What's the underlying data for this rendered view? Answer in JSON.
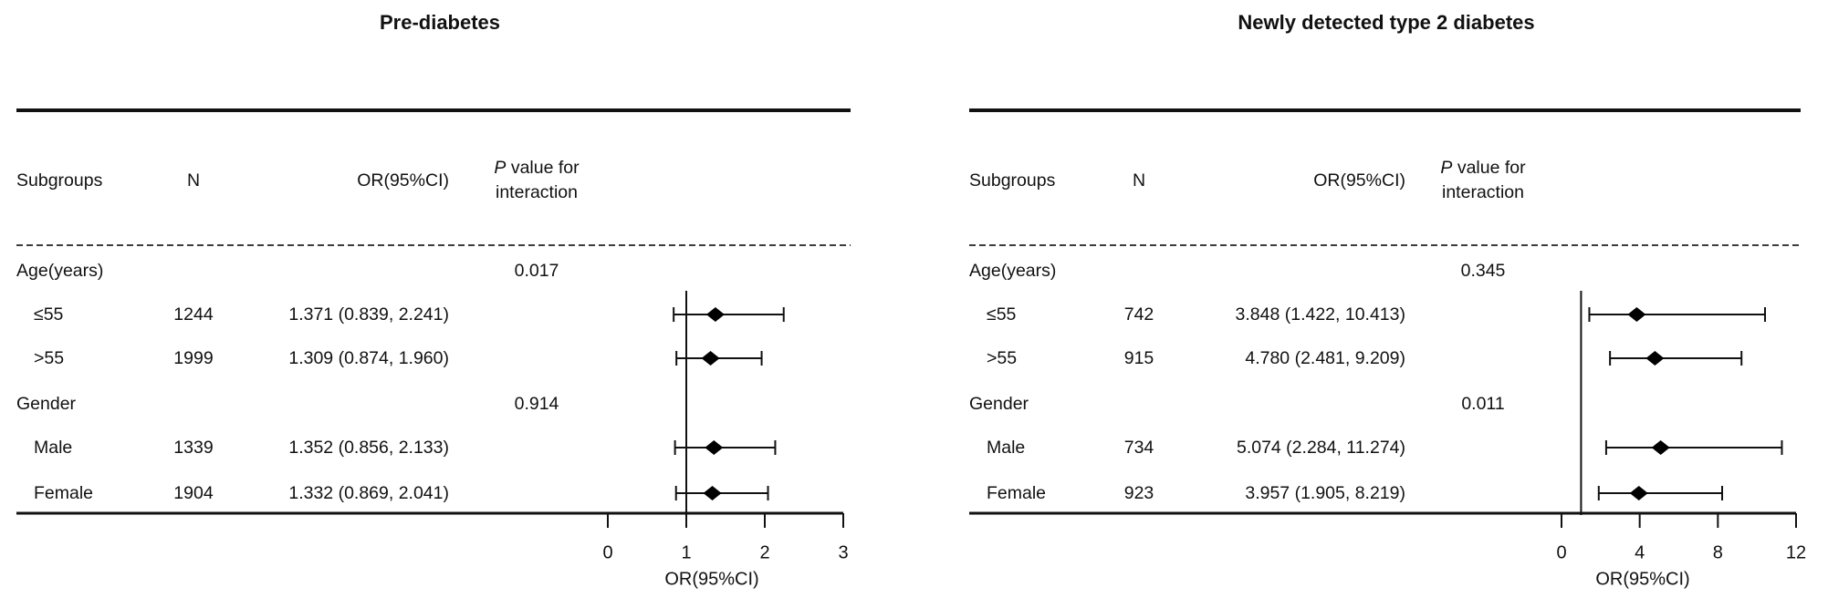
{
  "figure": {
    "name": "Subgroup forest plots of odds ratios",
    "background": "#ffffff",
    "text_color": "#111111",
    "marker_color": "#000000"
  },
  "chart_data": [
    {
      "type": "forest",
      "title": "Pre-diabetes",
      "columns": {
        "subgroups": "Subgroups",
        "n": "N",
        "or": "OR(95%CI)",
        "p_italic": "P",
        "p_rest": " value for",
        "p_line2": "interaction"
      },
      "rows": [
        {
          "type": "group",
          "label": "Age(years)",
          "p": "0.017"
        },
        {
          "type": "item",
          "label": "≤55",
          "n": "1244",
          "or_text": "1.371 (0.839, 2.241)",
          "or": 1.371,
          "lo": 0.839,
          "hi": 2.241
        },
        {
          "type": "item",
          "label": ">55",
          "n": "1999",
          "or_text": "1.309 (0.874, 1.960)",
          "or": 1.309,
          "lo": 0.874,
          "hi": 1.96
        },
        {
          "type": "group",
          "label": "Gender",
          "p": "0.914"
        },
        {
          "type": "item",
          "label": "Male",
          "n": "1339",
          "or_text": "1.352 (0.856, 2.133)",
          "or": 1.352,
          "lo": 0.856,
          "hi": 2.133
        },
        {
          "type": "item",
          "label": "Female",
          "n": "1904",
          "or_text": "1.332 (0.869, 2.041)",
          "or": 1.332,
          "lo": 0.869,
          "hi": 2.041
        }
      ],
      "xlabel": "OR(95%CI)",
      "xticks": [
        0,
        1,
        2,
        3
      ],
      "xlim": [
        0,
        3
      ],
      "ref_line": 1,
      "grid": false,
      "legend": "none"
    },
    {
      "type": "forest",
      "title": "Newly detected type 2 diabetes",
      "columns": {
        "subgroups": "Subgroups",
        "n": "N",
        "or": "OR(95%CI)",
        "p_italic": "P",
        "p_rest": " value for",
        "p_line2": "interaction"
      },
      "rows": [
        {
          "type": "group",
          "label": "Age(years)",
          "p": "0.345"
        },
        {
          "type": "item",
          "label": "≤55",
          "n": "742",
          "or_text": "3.848 (1.422, 10.413)",
          "or": 3.848,
          "lo": 1.422,
          "hi": 10.413
        },
        {
          "type": "item",
          "label": ">55",
          "n": "915",
          "or_text": "4.780 (2.481, 9.209)",
          "or": 4.78,
          "lo": 2.481,
          "hi": 9.209
        },
        {
          "type": "group",
          "label": "Gender",
          "p": "0.011"
        },
        {
          "type": "item",
          "label": "Male",
          "n": "734",
          "or_text": "5.074 (2.284, 11.274)",
          "or": 5.074,
          "lo": 2.284,
          "hi": 11.274
        },
        {
          "type": "item",
          "label": "Female",
          "n": "923",
          "or_text": "3.957 (1.905, 8.219)",
          "or": 3.957,
          "lo": 1.905,
          "hi": 8.219
        }
      ],
      "xlabel": "OR(95%CI)",
      "xticks": [
        0,
        4,
        8,
        12
      ],
      "xlim": [
        0,
        12
      ],
      "ref_line": 1,
      "grid": false,
      "legend": "none"
    }
  ]
}
